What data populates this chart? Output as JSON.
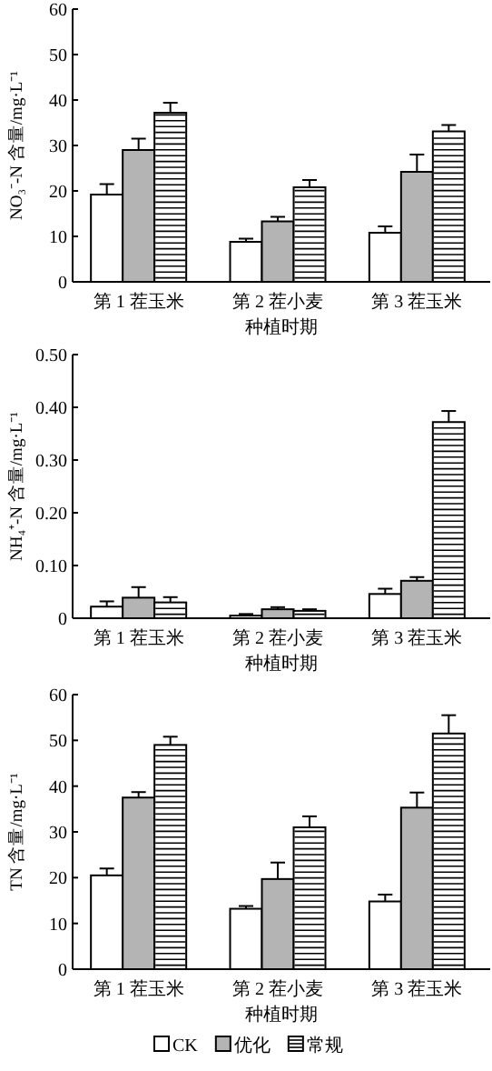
{
  "chart_data": [
    {
      "type": "bar",
      "ylabel": "NO₃⁻-N 含量/mg·L⁻¹",
      "xlabel": "种植时期",
      "categories": [
        "第 1 茬玉米",
        "第 2 茬小麦",
        "第 3 茬玉米"
      ],
      "ylim": [
        0,
        60
      ],
      "yticks": [
        0,
        10,
        20,
        30,
        40,
        50,
        60
      ],
      "grid": false,
      "legend": false,
      "series": [
        {
          "color": "#ffffff",
          "values": [
            19.2,
            8.8,
            10.8
          ],
          "errors": [
            [
              19.2,
              21.5
            ],
            [
              8.8,
              9.5
            ],
            [
              10.8,
              12.2
            ]
          ]
        },
        {
          "color": "#b4b4b4",
          "values": [
            29,
            13.3,
            24.2
          ],
          "errors": [
            [
              29,
              31.5
            ],
            [
              13.3,
              14.3
            ],
            [
              24.2,
              28
            ]
          ]
        },
        {
          "color": "#ffffff",
          "values": [
            37.2,
            20.8,
            33.1
          ],
          "errors": [
            [
              37.2,
              39.4
            ],
            [
              20.8,
              22.4
            ],
            [
              33.1,
              34.5
            ]
          ]
        }
      ]
    },
    {
      "type": "bar",
      "ylabel": "NH₄⁺-N 含量/mg·L⁻¹",
      "xlabel": "种植时期",
      "categories": [
        "第 1 茬玉米",
        "第 2 茬小麦",
        "第 3 茬玉米"
      ],
      "ylim": [
        0,
        0.5
      ],
      "yticks": [
        0,
        {
          "value": 0.1,
          "label": "0.10"
        },
        {
          "value": 0.2,
          "label": "0.20"
        },
        {
          "value": 0.3,
          "label": "0.30"
        },
        {
          "value": 0.4,
          "label": "0.40"
        },
        {
          "value": 0.5,
          "label": "0.50"
        }
      ],
      "grid": false,
      "legend": false,
      "series": [
        {
          "color": "#ffffff",
          "values": [
            0.022,
            0.005,
            0.046
          ],
          "errors": [
            [
              0.022,
              0.032
            ],
            [
              0.005,
              0.008
            ],
            [
              0.046,
              0.056
            ]
          ]
        },
        {
          "color": "#b4b4b4",
          "values": [
            0.039,
            0.017,
            0.071
          ],
          "errors": [
            [
              0.039,
              0.059
            ],
            [
              0.017,
              0.021
            ],
            [
              0.071,
              0.078
            ]
          ]
        },
        {
          "color": "#ffffff",
          "values": [
            0.03,
            0.014,
            0.372
          ],
          "errors": [
            [
              0.03,
              0.04
            ],
            [
              0.014,
              0.017
            ],
            [
              0.372,
              0.393
            ]
          ]
        }
      ]
    },
    {
      "type": "bar",
      "ylabel": "TN 含量/mg·L⁻¹",
      "xlabel": "种植时期",
      "categories": [
        "第 1 茬玉米",
        "第 2 茬小麦",
        "第 3 茬玉米"
      ],
      "ylim": [
        0,
        60
      ],
      "yticks": [
        0,
        10,
        20,
        30,
        40,
        50,
        60
      ],
      "grid": false,
      "legend": "bottom",
      "series": [
        {
          "name": "CK",
          "color": "#ffffff",
          "values": [
            20.5,
            13.2,
            14.8
          ],
          "errors": [
            [
              20.5,
              22
            ],
            [
              13.2,
              13.8
            ],
            [
              14.8,
              16.3
            ]
          ]
        },
        {
          "name": "优化",
          "color": "#b4b4b4",
          "values": [
            37.5,
            19.7,
            35.3
          ],
          "errors": [
            [
              37.5,
              38.7
            ],
            [
              19.7,
              23.3
            ],
            [
              35.3,
              38.6
            ]
          ]
        },
        {
          "name": "常规",
          "color": "#ffffff",
          "values": [
            49,
            31,
            51.5
          ],
          "errors": [
            [
              49,
              50.8
            ],
            [
              31,
              33.4
            ],
            [
              51.5,
              55.5
            ]
          ]
        }
      ]
    }
  ]
}
